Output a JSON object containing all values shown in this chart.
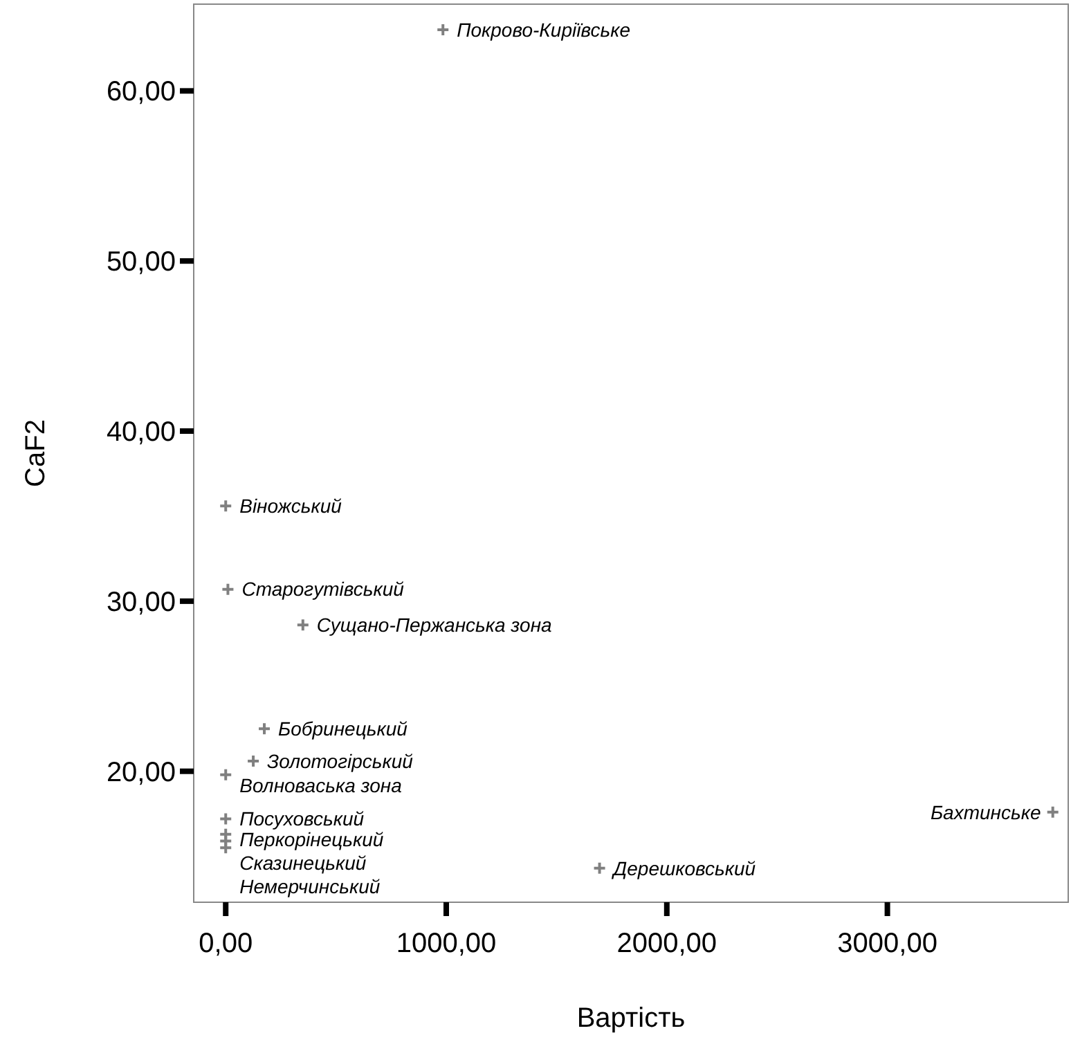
{
  "chart_data": {
    "type": "scatter",
    "xlabel": "Вартість",
    "ylabel": "CaF2",
    "xlim": [
      -145,
      3820
    ],
    "ylim": [
      12.3,
      65.1
    ],
    "xticks": [
      {
        "value": 0,
        "label": "0,00"
      },
      {
        "value": 1000,
        "label": "1000,00"
      },
      {
        "value": 2000,
        "label": "2000,00"
      },
      {
        "value": 3000,
        "label": "3000,00"
      }
    ],
    "yticks": [
      {
        "value": 20,
        "label": "20,00"
      },
      {
        "value": 30,
        "label": "30,00"
      },
      {
        "value": 40,
        "label": "40,00"
      },
      {
        "value": 50,
        "label": "50,00"
      },
      {
        "value": 60,
        "label": "60,00"
      }
    ],
    "grid": false,
    "marker": "cross",
    "series": [
      {
        "color": "#808080",
        "x": [
          985,
          0,
          10,
          350,
          175,
          125,
          0,
          0,
          0,
          0,
          0,
          1695,
          3750
        ],
        "values": [
          63.6,
          35.6,
          30.7,
          28.6,
          22.5,
          20.6,
          19.8,
          17.2,
          16.3,
          15.9,
          15.5,
          14.3,
          17.6
        ]
      }
    ],
    "annotations": [
      {
        "text": "Покрово-Киріївське",
        "x": 985,
        "y": 63.6
      },
      {
        "text": "Віножський",
        "x": 0,
        "y": 35.6
      },
      {
        "text": "Старогутівський",
        "x": 10,
        "y": 30.7
      },
      {
        "text": "Сущано-Пержанська зона",
        "x": 350,
        "y": 28.6
      },
      {
        "text": "Бобринецький",
        "x": 175,
        "y": 22.5
      },
      {
        "text": "Золотогірський",
        "x": 125,
        "y": 20.6
      },
      {
        "text": "Волноваська зона",
        "x": 0,
        "y": 19.8
      },
      {
        "text": "Посуховський",
        "x": 0,
        "y": 17.2
      },
      {
        "text": "Перкорінецький",
        "x": 0,
        "y": 16.3
      },
      {
        "text": "Сказинецький",
        "x": 0,
        "y": 15.9
      },
      {
        "text": "Немерчинський",
        "x": 0,
        "y": 15.5
      },
      {
        "text": "Дерешковський",
        "x": 1695,
        "y": 14.3
      },
      {
        "text": "Бахтинське",
        "x": 3750,
        "y": 17.6
      }
    ]
  }
}
